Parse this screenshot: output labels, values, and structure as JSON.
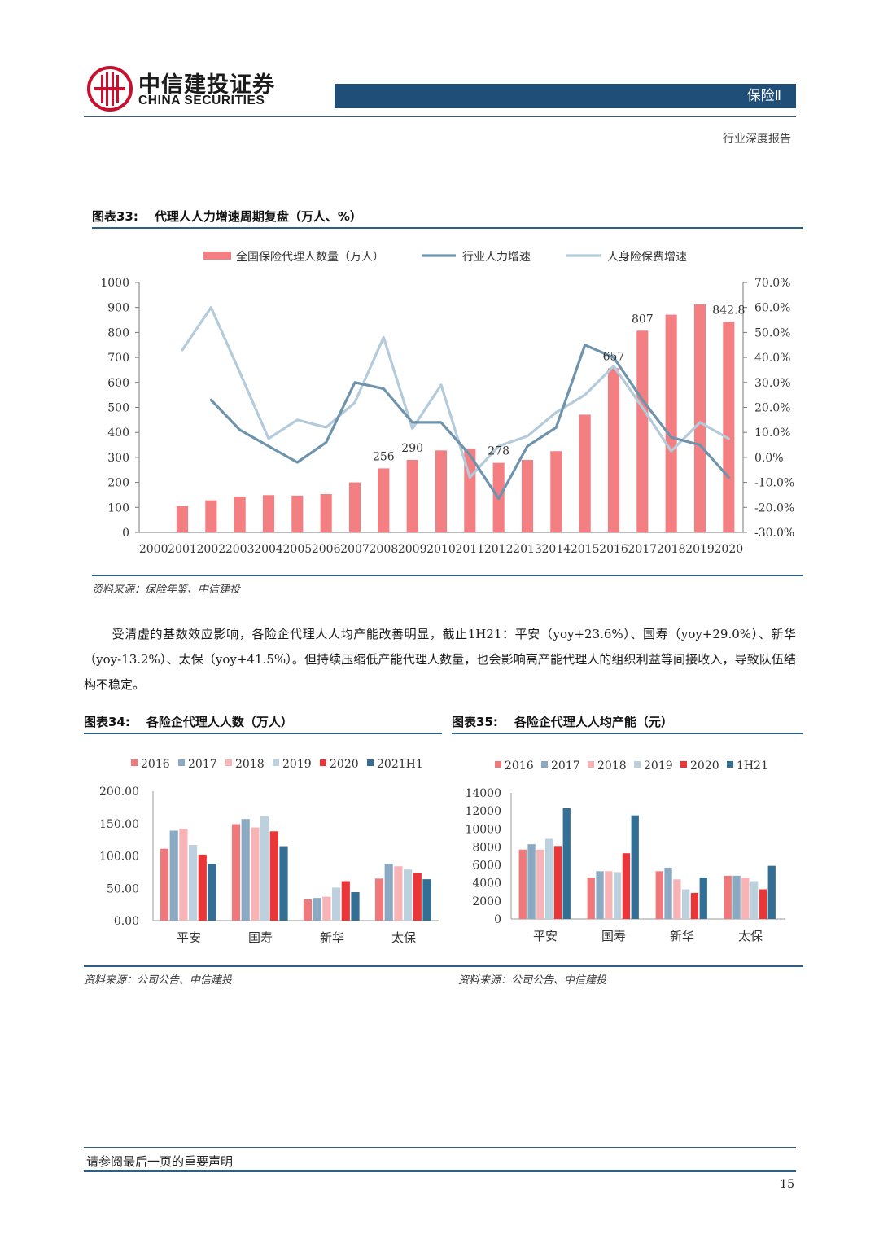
{
  "header": {
    "logo_cn": "中信建投证券",
    "logo_en": "CHINA SECURITIES",
    "sector": "保险Ⅱ",
    "report_type": "行业深度报告"
  },
  "colors": {
    "brand_red": "#c8102e",
    "header_blue": "#1f4e79",
    "bar_pink": "#f47f82",
    "line_dark": "#6e93ad",
    "line_light": "#b3cbdb",
    "s2016": "#f0787a",
    "s2017": "#8aa9c3",
    "s2018": "#f7b3b5",
    "s2019": "#bcd0de",
    "s2020": "#ea3638",
    "s2021": "#336e94"
  },
  "figure33": {
    "label": "图表33:",
    "title": "代理人人力增速周期复盘（万人、%）",
    "source": "资料来源：保险年鉴、中信建投"
  },
  "paragraph": "受清虚的基数效应影响，各险企代理人人均产能改善明显，截止1H21：平安（yoy+23.6%）、国寿（yoy+29.0%）、新华（yoy-13.2%）、太保（yoy+41.5%）。但持续压缩低产能代理人数量，也会影响高产能代理人的组织利益等间接收入，导致队伍结构不稳定。",
  "figure34": {
    "label": "图表34:",
    "title": "各险企代理人人数（万人）",
    "source": "资料来源：公司公告、中信建投"
  },
  "figure35": {
    "label": "图表35:",
    "title": "各险企代理人人均产能（元）",
    "source": "资料来源：公司公告、中信建投"
  },
  "footer": {
    "notice": "请参阅最后一页的重要声明",
    "page": "15"
  },
  "chart_data": [
    {
      "id": "fig33",
      "type": "bar",
      "categories": [
        "2000",
        "2001",
        "2002",
        "2003",
        "2004",
        "2005",
        "2006",
        "2007",
        "2008",
        "2009",
        "2010",
        "2011",
        "2012",
        "2013",
        "2014",
        "2015",
        "2016",
        "2017",
        "2018",
        "2019",
        "2020"
      ],
      "series": [
        {
          "name": "全国保险代理人数量（万人）",
          "type": "bar",
          "axis": "left",
          "color": "#f47f82",
          "values": [
            null,
            105,
            128,
            143,
            149,
            147,
            153,
            200,
            256,
            290,
            328,
            334,
            278,
            290,
            325,
            471,
            657,
            807,
            871,
            912,
            842.8
          ]
        },
        {
          "name": "行业人力增速",
          "type": "line",
          "axis": "right",
          "color": "#6e93ad",
          "values": [
            null,
            null,
            23.0,
            11.0,
            4.5,
            -2.0,
            6.0,
            30.0,
            27.5,
            14.0,
            14.0,
            1.0,
            -16.5,
            4.5,
            12.0,
            45.0,
            40.0,
            23.0,
            8.0,
            5.0,
            -8.0
          ]
        },
        {
          "name": "人身险保费增速",
          "type": "line",
          "axis": "right",
          "color": "#b3cbdb",
          "values": [
            null,
            43.0,
            60.0,
            34.0,
            7.5,
            15.0,
            12.0,
            22.0,
            48.0,
            11.5,
            29.0,
            -8.0,
            4.5,
            8.5,
            18.0,
            25.0,
            36.5,
            20.0,
            2.5,
            14.0,
            7.5
          ]
        }
      ],
      "data_labels": [
        {
          "category": "2008",
          "text": "256"
        },
        {
          "category": "2009",
          "text": "290"
        },
        {
          "category": "2012",
          "text": "278"
        },
        {
          "category": "2016",
          "text": "657"
        },
        {
          "category": "2017",
          "text": "807"
        },
        {
          "category": "2020",
          "text": "842.8"
        }
      ],
      "y_left": {
        "range": [
          0,
          1000
        ],
        "ticks": [
          "0",
          "100",
          "200",
          "300",
          "400",
          "500",
          "600",
          "700",
          "800",
          "900",
          "1000"
        ]
      },
      "y_right": {
        "range": [
          -30,
          70
        ],
        "ticks": [
          "-30.0%",
          "-20.0%",
          "-10.0%",
          "0.0%",
          "10.0%",
          "20.0%",
          "30.0%",
          "40.0%",
          "50.0%",
          "60.0%",
          "70.0%"
        ]
      },
      "legend": "top",
      "grid": false
    },
    {
      "id": "fig34",
      "type": "bar",
      "categories": [
        "平安",
        "国寿",
        "新华",
        "太保"
      ],
      "series": [
        {
          "name": "2016",
          "color": "#f0787a",
          "values": [
            111,
            149,
            33,
            65
          ]
        },
        {
          "name": "2017",
          "color": "#8aa9c3",
          "values": [
            139,
            157,
            35,
            87
          ]
        },
        {
          "name": "2018",
          "color": "#f7b3b5",
          "values": [
            142,
            144,
            37,
            84
          ]
        },
        {
          "name": "2019",
          "color": "#bcd0de",
          "values": [
            117,
            161,
            51,
            79
          ]
        },
        {
          "name": "2020",
          "color": "#ea3638",
          "values": [
            102,
            138,
            61,
            74
          ]
        },
        {
          "name": "2021H1",
          "color": "#336e94",
          "values": [
            88,
            115,
            44,
            64
          ]
        }
      ],
      "y": {
        "range": [
          0,
          200
        ],
        "ticks": [
          "0.00",
          "50.00",
          "100.00",
          "150.00",
          "200.00"
        ]
      },
      "legend": "top",
      "grid": false
    },
    {
      "id": "fig35",
      "type": "bar",
      "categories": [
        "平安",
        "国寿",
        "新华",
        "太保"
      ],
      "series": [
        {
          "name": "2016",
          "color": "#f0787a",
          "values": [
            7700,
            4600,
            5300,
            4800
          ]
        },
        {
          "name": "2017",
          "color": "#8aa9c3",
          "values": [
            8300,
            5300,
            5700,
            4800
          ]
        },
        {
          "name": "2018",
          "color": "#f7b3b5",
          "values": [
            7700,
            5300,
            4400,
            4600
          ]
        },
        {
          "name": "2019",
          "color": "#bcd0de",
          "values": [
            8900,
            5200,
            3300,
            4200
          ]
        },
        {
          "name": "2020",
          "color": "#ea3638",
          "values": [
            8100,
            7300,
            2900,
            3300
          ]
        },
        {
          "name": "1H21",
          "color": "#336e94",
          "values": [
            12300,
            11500,
            4600,
            5900
          ]
        }
      ],
      "y": {
        "range": [
          0,
          14000
        ],
        "ticks": [
          "0",
          "2000",
          "4000",
          "6000",
          "8000",
          "10000",
          "12000",
          "14000"
        ]
      },
      "legend": "top",
      "grid": false
    }
  ]
}
